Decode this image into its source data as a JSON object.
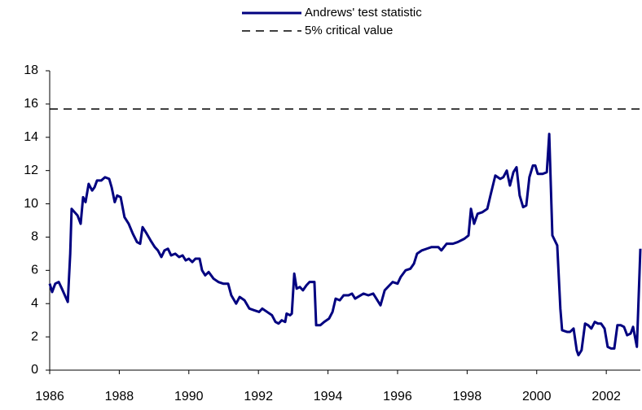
{
  "chart_data": {
    "type": "line",
    "xlim": [
      1986,
      2002.98
    ],
    "xticks": [
      1986,
      1988,
      1990,
      1992,
      1994,
      1996,
      1998,
      2000,
      2002
    ],
    "ylim": [
      0,
      18
    ],
    "yticks": [
      0,
      2,
      4,
      6,
      8,
      10,
      12,
      14,
      16,
      18
    ],
    "series": [
      {
        "name": "Andrews' test statistic",
        "color": "#000080",
        "style": "solid",
        "x": [
          1986.0,
          1986.07,
          1986.16,
          1986.26,
          1986.35,
          1986.52,
          1986.59,
          1986.63,
          1986.8,
          1986.89,
          1986.96,
          1987.03,
          1987.12,
          1987.22,
          1987.29,
          1987.36,
          1987.48,
          1987.59,
          1987.71,
          1987.78,
          1987.87,
          1987.94,
          1988.04,
          1988.15,
          1988.27,
          1988.39,
          1988.51,
          1988.6,
          1988.67,
          1988.79,
          1988.9,
          1989.02,
          1989.11,
          1989.21,
          1989.3,
          1989.4,
          1989.49,
          1989.61,
          1989.72,
          1989.82,
          1989.91,
          1990.0,
          1990.1,
          1990.19,
          1990.31,
          1990.38,
          1990.47,
          1990.57,
          1990.71,
          1990.85,
          1990.99,
          1991.13,
          1991.22,
          1991.36,
          1991.46,
          1991.6,
          1991.74,
          1991.88,
          1992.02,
          1992.11,
          1992.25,
          1992.39,
          1992.49,
          1992.58,
          1992.67,
          1992.77,
          1992.81,
          1992.91,
          1992.96,
          1993.03,
          1993.1,
          1993.19,
          1993.28,
          1993.38,
          1993.47,
          1993.61,
          1993.66,
          1993.78,
          1993.89,
          1994.03,
          1994.13,
          1994.22,
          1994.34,
          1994.45,
          1994.59,
          1994.69,
          1994.78,
          1995.02,
          1995.16,
          1995.3,
          1995.39,
          1995.51,
          1995.63,
          1995.86,
          1996.0,
          1996.09,
          1996.23,
          1996.37,
          1996.47,
          1996.56,
          1996.7,
          1996.84,
          1996.98,
          1997.17,
          1997.26,
          1997.41,
          1997.59,
          1997.73,
          1997.92,
          1998.04,
          1998.11,
          1998.2,
          1998.3,
          1998.44,
          1998.58,
          1998.67,
          1998.81,
          1998.95,
          1999.04,
          1999.14,
          1999.23,
          1999.33,
          1999.42,
          1999.51,
          1999.61,
          1999.7,
          1999.79,
          1999.89,
          1999.96,
          2000.03,
          2000.17,
          2000.29,
          2000.36,
          2000.45,
          2000.59,
          2000.68,
          2000.73,
          2000.87,
          2000.96,
          2001.06,
          2001.15,
          2001.2,
          2001.29,
          2001.39,
          2001.48,
          2001.57,
          2001.67,
          2001.76,
          2001.85,
          2001.95,
          2002.04,
          2002.14,
          2002.23,
          2002.32,
          2002.42,
          2002.51,
          2002.6,
          2002.7,
          2002.77,
          2002.88,
          2002.98
        ],
        "values": [
          5.2,
          4.7,
          5.2,
          5.3,
          4.9,
          4.1,
          7.0,
          9.7,
          9.3,
          8.8,
          10.4,
          10.1,
          11.2,
          10.8,
          11.0,
          11.4,
          11.4,
          11.6,
          11.5,
          11.0,
          10.1,
          10.5,
          10.4,
          9.2,
          8.8,
          8.2,
          7.7,
          7.6,
          8.6,
          8.2,
          7.8,
          7.4,
          7.2,
          6.8,
          7.2,
          7.3,
          6.9,
          7.0,
          6.8,
          6.9,
          6.6,
          6.7,
          6.5,
          6.7,
          6.7,
          6.0,
          5.7,
          5.9,
          5.5,
          5.3,
          5.2,
          5.2,
          4.5,
          4.0,
          4.4,
          4.2,
          3.7,
          3.6,
          3.5,
          3.7,
          3.5,
          3.3,
          2.9,
          2.8,
          3.0,
          2.9,
          3.4,
          3.3,
          3.4,
          5.8,
          4.9,
          5.0,
          4.8,
          5.1,
          5.3,
          5.3,
          2.7,
          2.7,
          2.9,
          3.1,
          3.5,
          4.3,
          4.2,
          4.5,
          4.5,
          4.6,
          4.3,
          4.6,
          4.5,
          4.6,
          4.3,
          3.9,
          4.8,
          5.3,
          5.2,
          5.6,
          6.0,
          6.1,
          6.4,
          7.0,
          7.2,
          7.3,
          7.4,
          7.4,
          7.2,
          7.6,
          7.6,
          7.7,
          7.9,
          8.1,
          9.7,
          8.8,
          9.4,
          9.5,
          9.7,
          10.5,
          11.7,
          11.5,
          11.6,
          12.0,
          11.1,
          11.9,
          12.2,
          10.5,
          9.8,
          9.9,
          11.6,
          12.3,
          12.3,
          11.8,
          11.8,
          11.9,
          14.2,
          8.1,
          7.5,
          3.7,
          2.4,
          2.3,
          2.3,
          2.5,
          1.2,
          0.9,
          1.2,
          2.8,
          2.7,
          2.5,
          2.9,
          2.8,
          2.8,
          2.5,
          1.4,
          1.3,
          1.3,
          2.7,
          2.7,
          2.6,
          2.1,
          2.2,
          2.6,
          1.4,
          7.3
        ]
      },
      {
        "name": "5% critical value",
        "color": "#000000",
        "style": "dashed",
        "x": [
          1986,
          2002.98
        ],
        "values": [
          15.7,
          15.7
        ]
      }
    ]
  }
}
